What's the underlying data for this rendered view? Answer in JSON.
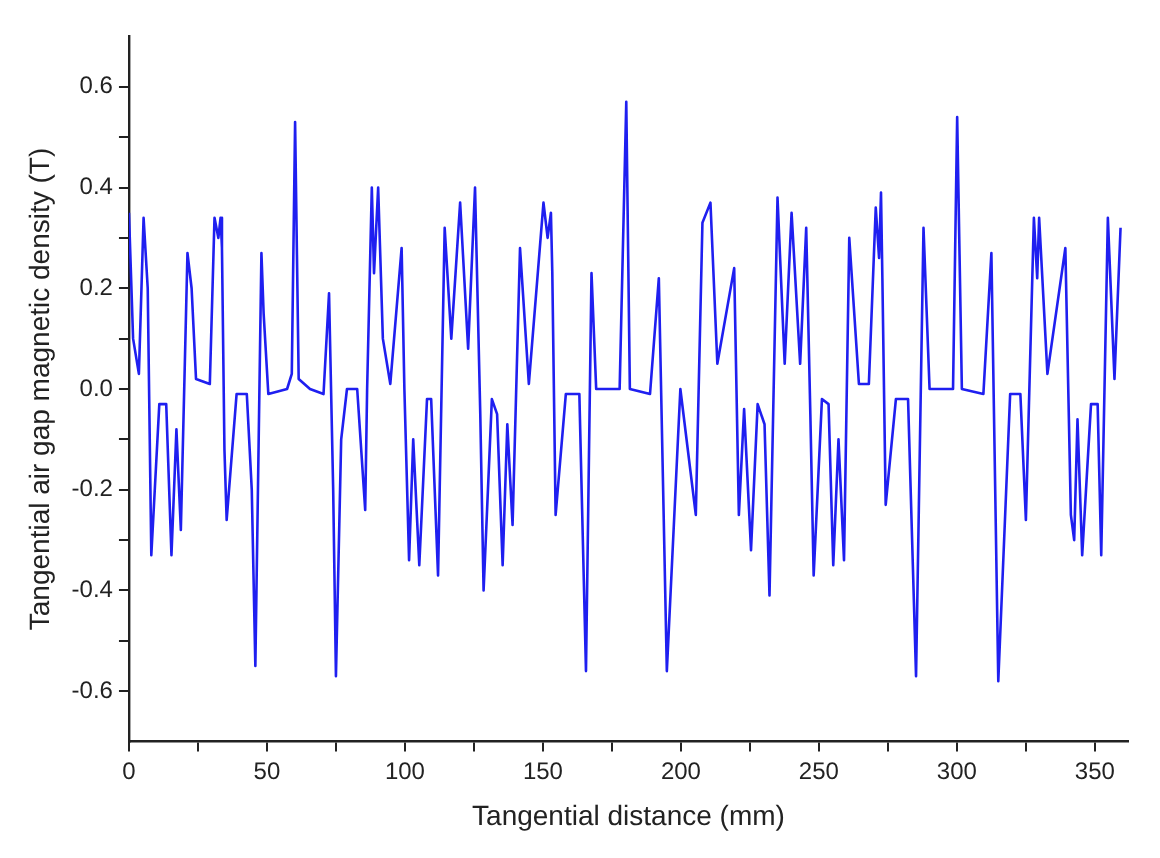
{
  "chart_data": {
    "type": "line",
    "xlabel": "Tangential distance (mm)",
    "ylabel": "Tangential air gap magnetic density (T)",
    "xlim": [
      0,
      362
    ],
    "ylim": [
      -0.7,
      0.7
    ],
    "xticks": [
      0,
      {
        "value": 25,
        "label": null
      },
      50,
      {
        "value": 75,
        "label": null
      },
      100,
      {
        "value": 125,
        "label": null
      },
      150,
      {
        "value": 175,
        "label": null
      },
      200,
      {
        "value": 225,
        "label": null
      },
      250,
      {
        "value": 275,
        "label": null
      },
      300,
      {
        "value": 325,
        "label": null
      },
      350
    ],
    "yticks": [
      -0.6,
      {
        "value": -0.5,
        "label": null
      },
      -0.4,
      {
        "value": -0.3,
        "label": null
      },
      -0.2,
      {
        "value": -0.1,
        "label": null
      },
      {
        "value": 0,
        "label": "0.0"
      },
      {
        "value": 0.1,
        "label": null
      },
      0.2,
      {
        "value": 0.3,
        "label": null
      },
      0.4,
      {
        "value": 0.5,
        "label": null
      },
      0.6
    ],
    "grid": false,
    "legend": false,
    "marker": "none",
    "line_style": "solid",
    "series": [
      {
        "color": "#1f1ff0",
        "x": [
          0,
          1.5,
          3.6,
          5.3,
          6.8,
          8.1,
          11,
          13.5,
          15.4,
          17.2,
          18.8,
          21.2,
          22.7,
          24.3,
          29.3,
          31,
          32.4,
          33.2,
          33.7,
          34.6,
          35.4,
          39,
          42.7,
          44.5,
          45.8,
          48,
          48.8,
          50.5,
          57.3,
          59,
          60.2,
          61.5,
          65.6,
          70.5,
          72.5,
          74,
          75,
          76.9,
          79,
          82.7,
          85.6,
          86.3,
          88,
          88.8,
          90.3,
          92,
          94.7,
          98.8,
          99.8,
          101.5,
          103,
          105.2,
          108,
          109.5,
          112,
          114.4,
          116.8,
          120,
          122.9,
          125.4,
          127.3,
          128.5,
          131.5,
          133.4,
          135.4,
          137.1,
          139,
          141.7,
          144.9,
          150.2,
          151.7,
          152.9,
          153.4,
          154.6,
          158.3,
          163.2,
          165.6,
          167.6,
          169.3,
          177.8,
          180.2,
          181.5,
          188.8,
          192,
          194.9,
          199.8,
          205.4,
          207.8,
          210.7,
          213.2,
          219.3,
          221,
          222.9,
          225.4,
          227.8,
          230.3,
          232.1,
          235,
          237.6,
          240.1,
          243.2,
          245.4,
          246.9,
          248.1,
          251.1,
          253.5,
          255.2,
          257.1,
          259.1,
          261,
          264.5,
          268.1,
          270.6,
          271.8,
          272.5,
          273,
          274.2,
          277.9,
          282.3,
          285.2,
          287.9,
          290.1,
          298.6,
          300.1,
          301.8,
          309.6,
          312.5,
          315,
          319.3,
          323,
          325,
          327.9,
          329.1,
          329.8,
          332.8,
          339.3,
          341.3,
          342.5,
          343.7,
          345.4,
          348.6,
          351,
          352.3,
          354.7,
          357.1,
          359.3
        ],
        "values": [
          0.35,
          0.1,
          0.03,
          0.34,
          0.2,
          -0.33,
          -0.03,
          -0.03,
          -0.33,
          -0.08,
          -0.28,
          0.27,
          0.2,
          0.02,
          0.01,
          0.34,
          0.3,
          0.34,
          0.28,
          -0.12,
          -0.26,
          -0.01,
          -0.01,
          -0.2,
          -0.55,
          0.27,
          0.15,
          -0.01,
          0,
          0.03,
          0.53,
          0.02,
          0,
          -0.01,
          0.19,
          -0.2,
          -0.57,
          -0.1,
          0,
          0,
          -0.24,
          0,
          0.4,
          0.23,
          0.4,
          0.1,
          0.01,
          0.28,
          0,
          -0.34,
          -0.1,
          -0.35,
          -0.02,
          -0.02,
          -0.37,
          0.32,
          0.1,
          0.37,
          0.08,
          0.4,
          -0.05,
          -0.4,
          -0.02,
          -0.05,
          -0.35,
          -0.07,
          -0.27,
          0.28,
          0.01,
          0.37,
          0.3,
          0.35,
          0.23,
          -0.25,
          -0.01,
          -0.01,
          -0.56,
          0.23,
          0,
          0,
          0.57,
          0,
          -0.01,
          0.22,
          -0.56,
          0,
          -0.25,
          0.33,
          0.37,
          0.05,
          0.24,
          -0.25,
          -0.04,
          -0.32,
          -0.03,
          -0.07,
          -0.41,
          0.38,
          0.05,
          0.35,
          0.05,
          0.32,
          -0.05,
          -0.37,
          -0.02,
          -0.03,
          -0.35,
          -0.1,
          -0.34,
          0.3,
          0.01,
          0.01,
          0.36,
          0.26,
          0.39,
          0.22,
          -0.23,
          -0.02,
          -0.02,
          -0.57,
          0.32,
          0,
          0,
          0.54,
          0,
          -0.01,
          0.27,
          -0.58,
          -0.01,
          -0.01,
          -0.26,
          0.34,
          0.22,
          0.34,
          0.03,
          0.28,
          -0.25,
          -0.3,
          -0.06,
          -0.33,
          -0.03,
          -0.03,
          -0.33,
          0.34,
          0.02,
          0.32
        ]
      }
    ]
  }
}
